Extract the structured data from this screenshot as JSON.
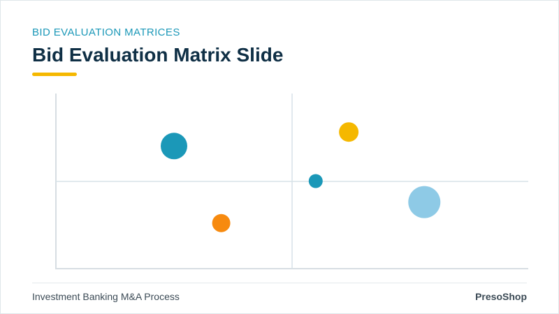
{
  "header": {
    "eyebrow": "BID EVALUATION MATRICES",
    "title": "Bid Evaluation Matrix Slide",
    "accent_color": "#f5b800"
  },
  "footer": {
    "left_text": "Investment Banking M&A Process",
    "right_text": "PresoShop"
  },
  "chart_data": {
    "type": "scatter",
    "title": "",
    "xlabel": "",
    "ylabel": "",
    "xlim": [
      0,
      100
    ],
    "ylim": [
      0,
      100
    ],
    "grid": false,
    "quadrant_divider": {
      "x": 50,
      "y": 50
    },
    "series": [
      {
        "points": [
          {
            "x": 25,
            "y": 70,
            "size": 19,
            "color": "#1b98b8"
          },
          {
            "x": 35,
            "y": 26,
            "size": 13,
            "color": "#f78a0f"
          },
          {
            "x": 55,
            "y": 50,
            "size": 10,
            "color": "#1b98b8"
          },
          {
            "x": 62,
            "y": 78,
            "size": 14,
            "color": "#f5b800"
          },
          {
            "x": 78,
            "y": 38,
            "size": 23,
            "color": "#8ecae6"
          }
        ]
      }
    ],
    "colors": {
      "axis": "#d7dee3",
      "divider": "#d7e2e8"
    }
  }
}
